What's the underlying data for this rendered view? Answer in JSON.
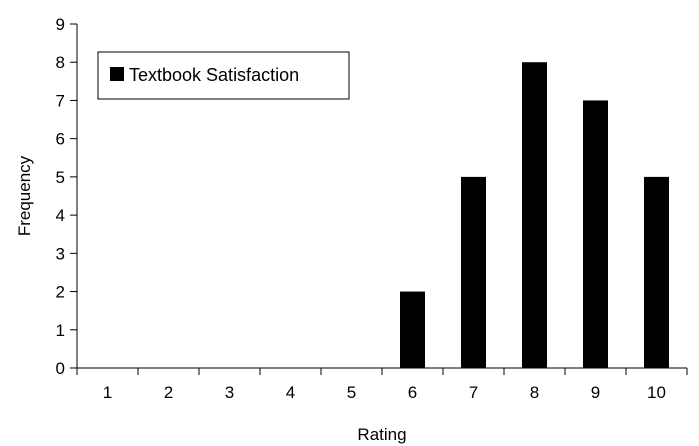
{
  "chart_data": {
    "type": "bar",
    "categories": [
      "1",
      "2",
      "3",
      "4",
      "5",
      "6",
      "7",
      "8",
      "9",
      "10"
    ],
    "series": [
      {
        "name": "Textbook Satisfaction",
        "values": [
          0,
          0,
          0,
          0,
          0,
          2,
          5,
          8,
          7,
          5
        ],
        "color": "#000000"
      }
    ],
    "xlabel": "Rating",
    "ylabel": "Frequency",
    "ylim": [
      0,
      9
    ],
    "yticks": [
      0,
      1,
      2,
      3,
      4,
      5,
      6,
      7,
      8,
      9
    ],
    "grid": false,
    "legend": "top-left"
  }
}
